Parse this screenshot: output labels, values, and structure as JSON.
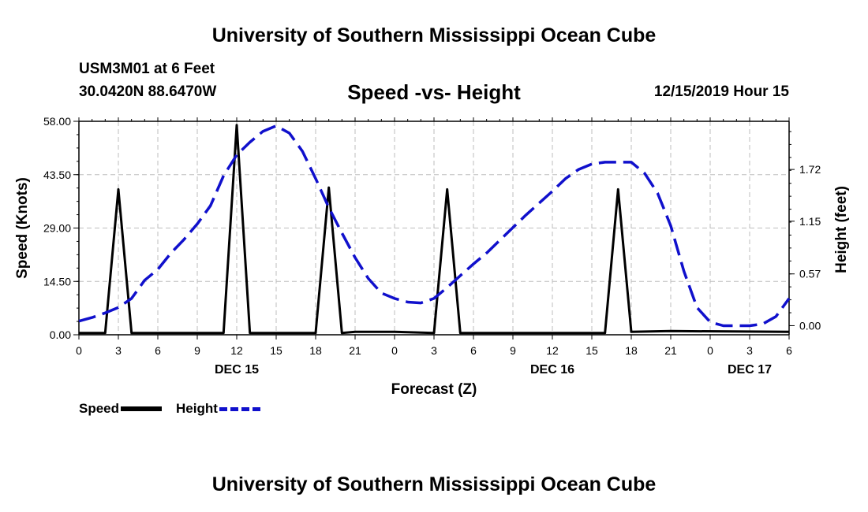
{
  "page": {
    "title_top": "University of Southern Mississippi Ocean Cube",
    "title_bottom": "University of Southern Mississippi Ocean Cube",
    "station": "USM3M01 at 6 Feet",
    "coords": "30.0420N 88.6470W",
    "datetime": "12/15/2019 Hour 15"
  },
  "chart_data": {
    "type": "line",
    "title": "Speed -vs- Height",
    "xlabel": "Forecast (Z)",
    "ylabel": "Speed (Knots)",
    "y2label": "Height (feet)",
    "x_range": [
      0,
      54
    ],
    "x_ticks": [
      0,
      3,
      6,
      9,
      12,
      15,
      18,
      21,
      24,
      27,
      30,
      33,
      36,
      39,
      42,
      45,
      48,
      51,
      54
    ],
    "x_tick_labels": [
      "0",
      "3",
      "6",
      "9",
      "12",
      "15",
      "18",
      "21",
      "0",
      "3",
      "6",
      "9",
      "12",
      "15",
      "18",
      "21",
      "0",
      "3",
      "6"
    ],
    "date_labels": [
      {
        "x": 12,
        "label": "DEC 15"
      },
      {
        "x": 36,
        "label": "DEC 16"
      },
      {
        "x": 51,
        "label": "DEC 17"
      }
    ],
    "ylim": [
      0,
      58
    ],
    "y_ticks": [
      0,
      14.5,
      29,
      43.5,
      58
    ],
    "y_tick_labels": [
      "0.00",
      "14.50",
      "29.00",
      "43.50",
      "58.00"
    ],
    "y2lim": [
      -0.1,
      2.25
    ],
    "y2_ticks": [
      0,
      0.57,
      1.15,
      1.72
    ],
    "y2_tick_labels": [
      "0.00",
      "0.57",
      "1.15",
      "1.72"
    ],
    "grid": true,
    "legend": [
      {
        "name": "Speed",
        "color": "#000000",
        "style": "solid"
      },
      {
        "name": "Height",
        "color": "#1010cc",
        "style": "dashed"
      }
    ],
    "series": [
      {
        "name": "Speed",
        "axis": "left",
        "color": "#000000",
        "x": [
          0,
          2,
          3,
          4,
          11,
          12,
          13,
          18,
          19,
          20,
          21,
          24,
          27,
          28,
          29,
          33,
          40,
          41,
          42,
          45,
          54
        ],
        "values": [
          0.5,
          0.5,
          39.5,
          0.5,
          0.5,
          57,
          0.5,
          0.5,
          40,
          0.5,
          0.8,
          0.8,
          0.5,
          39.5,
          0.5,
          0.5,
          0.5,
          39.5,
          0.8,
          1.0,
          0.8
        ]
      },
      {
        "name": "Height",
        "axis": "right",
        "color": "#1010cc",
        "x": [
          0,
          1,
          2,
          3,
          4,
          5,
          6,
          7,
          8,
          9,
          10,
          11,
          12,
          13,
          14,
          15,
          16,
          17,
          18,
          19,
          20,
          21,
          22,
          23,
          24,
          25,
          26,
          27,
          28,
          29,
          30,
          31,
          32,
          33,
          34,
          35,
          36,
          37,
          38,
          39,
          40,
          41,
          42,
          43,
          44,
          45,
          46,
          47,
          48,
          49,
          50,
          51,
          52,
          53,
          54
        ],
        "values": [
          0.05,
          0.09,
          0.14,
          0.2,
          0.3,
          0.5,
          0.62,
          0.8,
          0.95,
          1.12,
          1.32,
          1.65,
          1.88,
          2.02,
          2.14,
          2.2,
          2.12,
          1.92,
          1.62,
          1.3,
          1.02,
          0.75,
          0.52,
          0.36,
          0.3,
          0.26,
          0.25,
          0.3,
          0.42,
          0.55,
          0.68,
          0.8,
          0.94,
          1.08,
          1.22,
          1.35,
          1.48,
          1.62,
          1.72,
          1.78,
          1.8,
          1.8,
          1.8,
          1.68,
          1.46,
          1.1,
          0.6,
          0.2,
          0.04,
          0.0,
          0.0,
          0.0,
          0.02,
          0.1,
          0.3
        ]
      }
    ]
  }
}
